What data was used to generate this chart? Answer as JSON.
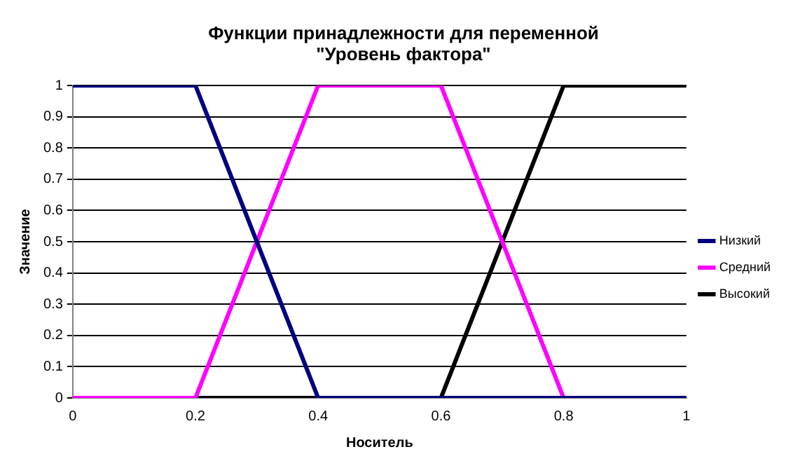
{
  "chart_data": {
    "type": "line",
    "title": "Функции принадлежности для переменной \"Уровень фактора\"",
    "xlabel": "Носитель",
    "ylabel": "Значение",
    "series": [
      {
        "name": "Низкий",
        "color": "#000080",
        "x": [
          0,
          0.2,
          0.4,
          1
        ],
        "values": [
          1,
          1,
          0,
          0
        ]
      },
      {
        "name": "Средний",
        "color": "#ff00ff",
        "x": [
          0,
          0.2,
          0.4,
          0.6,
          0.8,
          1
        ],
        "values": [
          0,
          0,
          1,
          1,
          0,
          0
        ]
      },
      {
        "name": "Высокий",
        "color": "#000000",
        "x": [
          0,
          0.6,
          0.8,
          1
        ],
        "values": [
          0,
          0,
          1,
          1
        ]
      }
    ],
    "xlim": [
      0,
      1
    ],
    "xticks": [
      0,
      0.2,
      0.4,
      0.6,
      0.8,
      1
    ],
    "ylim": [
      0,
      1
    ],
    "yticks": [
      0,
      0.1,
      0.2,
      0.3,
      0.4,
      0.5,
      0.6,
      0.7,
      0.8,
      0.9,
      1
    ],
    "grid": "y",
    "legend": "right",
    "marker": "none",
    "line_style": "solid"
  }
}
